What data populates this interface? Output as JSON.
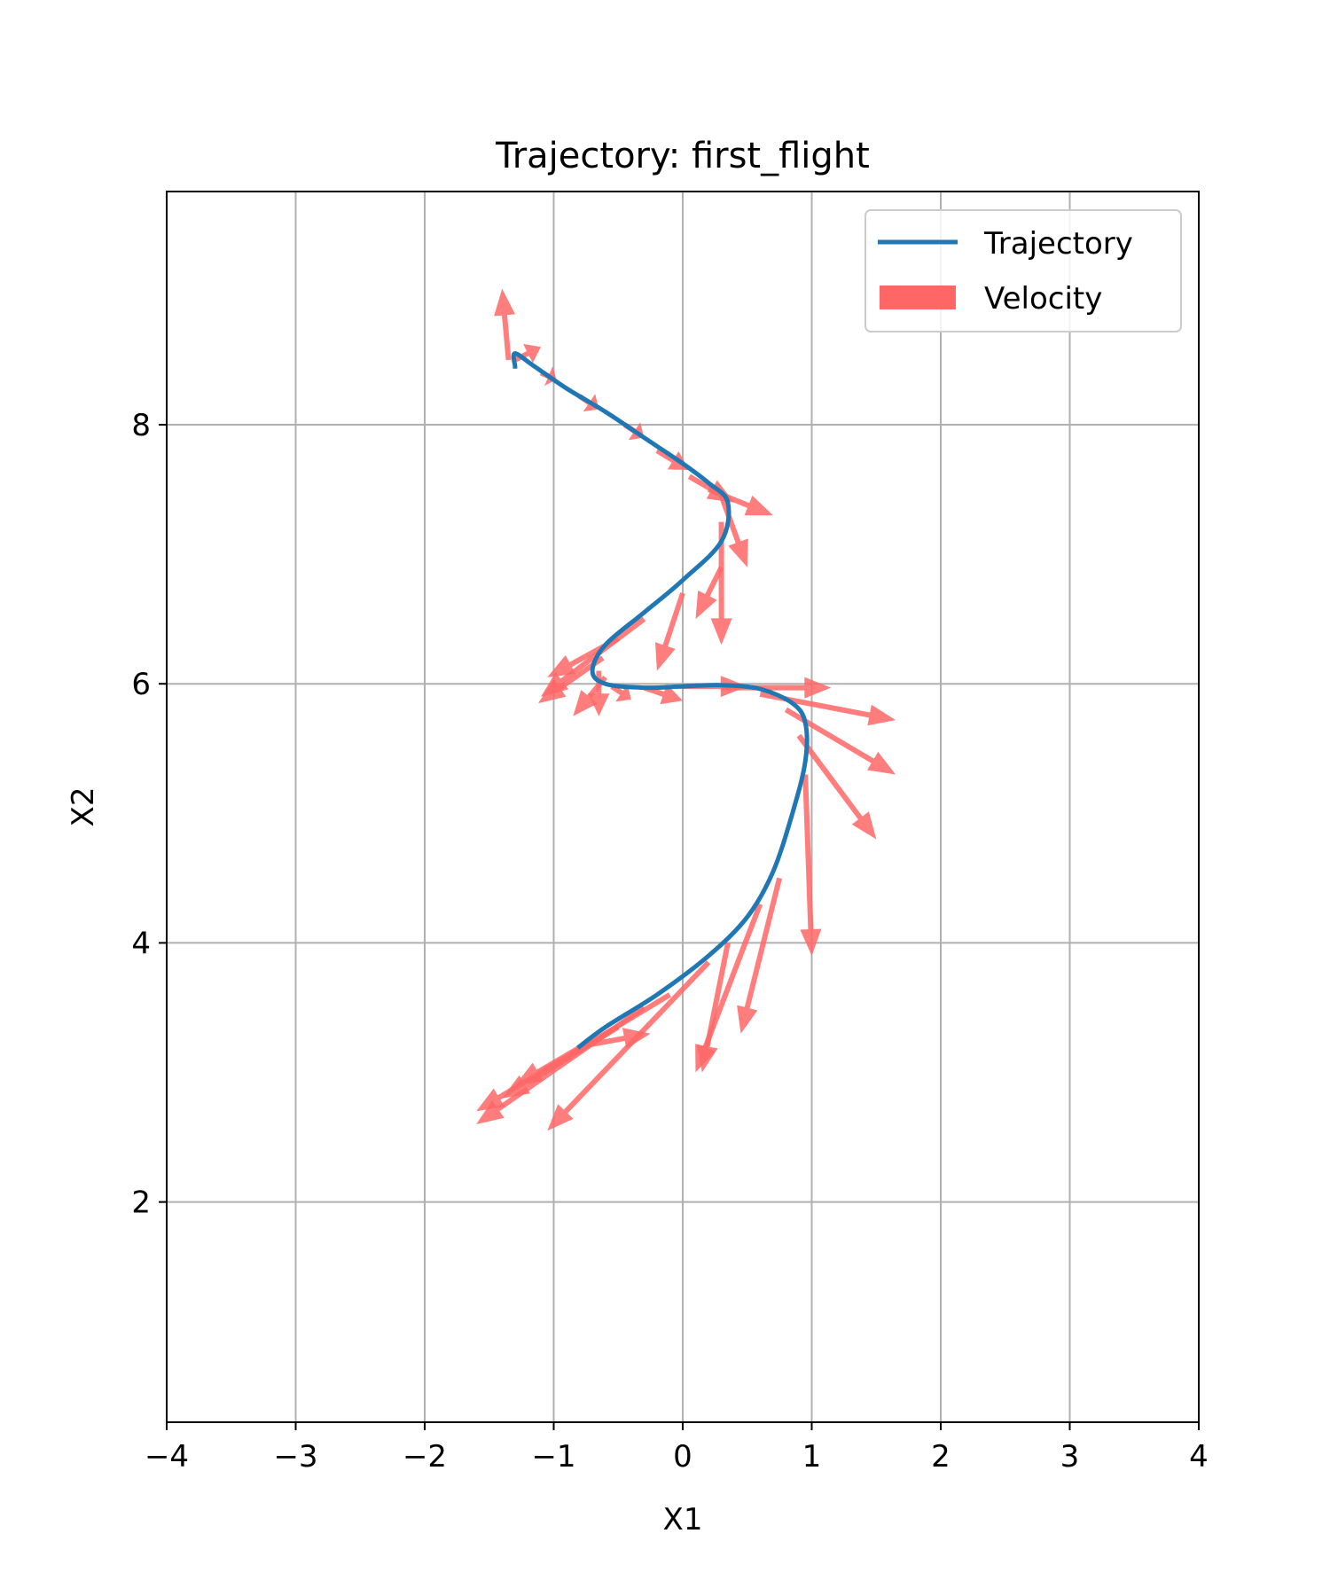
{
  "chart_data": {
    "type": "line",
    "title": "Trajectory: first_flight",
    "xlabel": "X1",
    "ylabel": "X2",
    "xlim": [
      -4,
      4
    ],
    "ylim": [
      0.3,
      9.8
    ],
    "xticks": [
      -4,
      -3,
      -2,
      -1,
      0,
      1,
      2,
      3,
      4
    ],
    "yticks": [
      2,
      4,
      6,
      8
    ],
    "xtick_labels": [
      "−4",
      "−3",
      "−2",
      "−1",
      "0",
      "1",
      "2",
      "3",
      "4"
    ],
    "ytick_labels": [
      "2",
      "4",
      "6",
      "8"
    ],
    "grid": true,
    "legend": {
      "position": "top-right",
      "entries": [
        {
          "label": "Trajectory",
          "kind": "line",
          "color": "#1f77b4"
        },
        {
          "label": "Velocity",
          "kind": "patch",
          "color": "#ff6666"
        }
      ]
    },
    "trajectory": {
      "name": "Trajectory",
      "color": "#1f77b4",
      "x": [
        -0.8,
        -0.6,
        -0.2,
        0.2,
        0.5,
        0.7,
        0.85,
        0.95,
        0.95,
        0.85,
        0.6,
        0.3,
        0.0,
        -0.3,
        -0.6,
        -0.7,
        -0.6,
        -0.3,
        0.0,
        0.3,
        0.35,
        0.2,
        0.0,
        -0.3,
        -0.6,
        -0.9,
        -1.15,
        -1.3,
        -1.3
      ],
      "y": [
        3.2,
        3.35,
        3.6,
        3.9,
        4.2,
        4.55,
        5.0,
        5.4,
        5.7,
        5.85,
        5.96,
        5.99,
        5.98,
        5.97,
        6.0,
        6.1,
        6.3,
        6.55,
        6.8,
        7.1,
        7.4,
        7.55,
        7.7,
        7.9,
        8.1,
        8.28,
        8.45,
        8.55,
        8.45
      ]
    },
    "velocity": {
      "name": "Velocity",
      "color": "#ff6666",
      "arrows": [
        {
          "x": -0.8,
          "y": 3.2,
          "dx": 0.55,
          "dy": 0.1
        },
        {
          "x": -0.7,
          "y": 3.25,
          "dx": -0.6,
          "dy": -0.35
        },
        {
          "x": -0.5,
          "y": 3.35,
          "dx": -0.9,
          "dy": -0.55
        },
        {
          "x": -0.3,
          "y": 3.5,
          "dx": -1.3,
          "dy": -0.9
        },
        {
          "x": -0.1,
          "y": 3.6,
          "dx": -1.5,
          "dy": -0.9
        },
        {
          "x": 0.2,
          "y": 3.85,
          "dx": -1.25,
          "dy": -1.3
        },
        {
          "x": 0.35,
          "y": 4.0,
          "dx": -0.2,
          "dy": -1.0
        },
        {
          "x": 0.6,
          "y": 4.3,
          "dx": -0.5,
          "dy": -1.3
        },
        {
          "x": 0.75,
          "y": 4.5,
          "dx": -0.3,
          "dy": -1.2
        },
        {
          "x": 0.95,
          "y": 5.3,
          "dx": 0.05,
          "dy": -1.4
        },
        {
          "x": 0.9,
          "y": 5.6,
          "dx": 0.6,
          "dy": -0.8
        },
        {
          "x": 0.8,
          "y": 5.8,
          "dx": 0.85,
          "dy": -0.5
        },
        {
          "x": 0.6,
          "y": 5.92,
          "dx": 1.05,
          "dy": -0.2
        },
        {
          "x": 0.3,
          "y": 5.97,
          "dx": 0.85,
          "dy": 0.0
        },
        {
          "x": 0.0,
          "y": 5.98,
          "dx": 0.5,
          "dy": 0.0
        },
        {
          "x": -0.3,
          "y": 5.97,
          "dx": 0.3,
          "dy": -0.1
        },
        {
          "x": -0.55,
          "y": 5.98,
          "dx": 0.15,
          "dy": -0.1
        },
        {
          "x": -0.6,
          "y": 6.05,
          "dx": -0.25,
          "dy": -0.3
        },
        {
          "x": -0.65,
          "y": 6.1,
          "dx": 0.0,
          "dy": -0.35
        },
        {
          "x": -0.62,
          "y": 6.2,
          "dx": -0.5,
          "dy": -0.35
        },
        {
          "x": -0.5,
          "y": 6.35,
          "dx": -0.55,
          "dy": -0.3
        },
        {
          "x": -0.3,
          "y": 6.5,
          "dx": -0.8,
          "dy": -0.6
        },
        {
          "x": 0.0,
          "y": 6.7,
          "dx": -0.2,
          "dy": -0.6
        },
        {
          "x": 0.3,
          "y": 6.9,
          "dx": -0.2,
          "dy": -0.4
        },
        {
          "x": 0.3,
          "y": 7.25,
          "dx": 0.0,
          "dy": -0.95
        },
        {
          "x": 0.3,
          "y": 7.45,
          "dx": 0.2,
          "dy": -0.55
        },
        {
          "x": 0.2,
          "y": 7.5,
          "dx": 0.5,
          "dy": -0.2
        },
        {
          "x": 0.05,
          "y": 7.6,
          "dx": 0.35,
          "dy": -0.2
        },
        {
          "x": -0.2,
          "y": 7.8,
          "dx": 0.25,
          "dy": -0.15
        },
        {
          "x": -0.45,
          "y": 8.0,
          "dx": 0.15,
          "dy": -0.1
        },
        {
          "x": -0.8,
          "y": 8.22,
          "dx": 0.15,
          "dy": -0.1
        },
        {
          "x": -1.1,
          "y": 8.4,
          "dx": 0.12,
          "dy": -0.05
        },
        {
          "x": -1.3,
          "y": 8.5,
          "dx": 0.2,
          "dy": 0.1
        },
        {
          "x": -1.35,
          "y": 8.5,
          "dx": -0.05,
          "dy": 0.55
        }
      ]
    }
  }
}
